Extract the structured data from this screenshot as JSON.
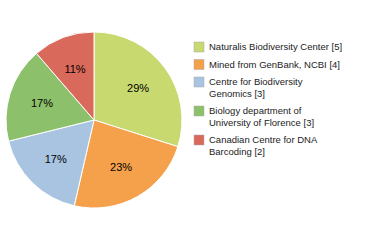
{
  "chart_data": {
    "type": "pie",
    "categories": [
      "Naturalis Biodiversity Center [5]",
      "Mined from GenBank, NCBI [4]",
      "Centre for Biodiversity\nGenomics [3]",
      "Biology department of\nUniversity of Florence [3]",
      "Canadian Centre for DNA\nBarcoding [2]"
    ],
    "values": [
      29,
      23,
      17,
      17,
      11
    ],
    "value_labels": [
      "29%",
      "23%",
      "17%",
      "17%",
      "11%"
    ],
    "colors": [
      "#c8d96f",
      "#f5a04a",
      "#a8c4e0",
      "#8dc06a",
      "#d9695a"
    ],
    "data_labels": true,
    "legend": "right"
  }
}
